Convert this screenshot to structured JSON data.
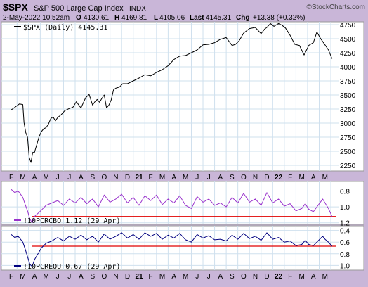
{
  "header": {
    "symbol": "$SPX",
    "name": "S&P 500 Large Cap Index",
    "exchange": "INDX",
    "copyright": "©StockCharts.com",
    "date_time": "2-May-2022 10:52am",
    "open_label": "O",
    "open_value": "4130.61",
    "high_label": "H",
    "high_value": "4169.81",
    "low_label": "L",
    "low_value": "4105.06",
    "last_label": "Last",
    "last_value": "4145.31",
    "chg_label": "Chg",
    "chg_value": "+13.38 (+0.32%)"
  },
  "months": [
    "F",
    "M",
    "A",
    "M",
    "J",
    "J",
    "A",
    "S",
    "O",
    "N",
    "D",
    "21",
    "F",
    "M",
    "A",
    "M",
    "J",
    "J",
    "A",
    "S",
    "O",
    "N",
    "D",
    "22",
    "F",
    "M",
    "A",
    "M"
  ],
  "bold_months": [
    "21",
    "22"
  ],
  "colors": {
    "background": "#c9b6d8",
    "panel": "#ffffff",
    "grid": "#cfe0ee",
    "price_line": "#000000",
    "cbo_line": "#9933cc",
    "equ_line": "#000080",
    "ref_line": "#e00000"
  },
  "chart_data": [
    {
      "type": "line",
      "legend": "$SPX (Daily) 4145.31",
      "x_unit": "month index (0 = Feb 2020)",
      "ylim": [
        2150,
        4800
      ],
      "yticks": [
        2250,
        2500,
        2750,
        3000,
        3250,
        3500,
        3750,
        4000,
        4250,
        4500,
        4750
      ],
      "series": [
        {
          "x": [
            0,
            0.3,
            0.7,
            1.0,
            1.1,
            1.25,
            1.4,
            1.55,
            1.7,
            1.85,
            2.0,
            2.2,
            2.4,
            2.6,
            2.8,
            3.0,
            3.2,
            3.4,
            3.6,
            3.8,
            4.0,
            4.3,
            4.6,
            5.0,
            5.3,
            5.6,
            6.0,
            6.4,
            6.7,
            7.0,
            7.2,
            7.4,
            7.6,
            7.8,
            8.0,
            8.2,
            8.4,
            8.6,
            8.8,
            9.0,
            9.3,
            9.6,
            10.0,
            10.5,
            11.0,
            11.5,
            12.0,
            12.5,
            13.0,
            13.5,
            14.0,
            14.5,
            15.0,
            15.5,
            16.0,
            16.5,
            17.0,
            17.5,
            18.0,
            18.5,
            19.0,
            19.3,
            19.6,
            20.0,
            20.5,
            21.0,
            21.5,
            21.8,
            22.0,
            22.3,
            22.6,
            23.0,
            23.3,
            23.6,
            24.0,
            24.4,
            24.8,
            25.2,
            25.6,
            26.0,
            26.3,
            26.6,
            27.0,
            27.3,
            27.6
          ],
          "values": [
            3235,
            3280,
            3340,
            3330,
            3010,
            2830,
            2750,
            2390,
            2300,
            2480,
            2480,
            2620,
            2760,
            2850,
            2900,
            2920,
            2980,
            3080,
            3110,
            3040,
            3100,
            3150,
            3220,
            3260,
            3280,
            3380,
            3270,
            3450,
            3510,
            3320,
            3380,
            3420,
            3370,
            3440,
            3500,
            3270,
            3320,
            3410,
            3590,
            3620,
            3640,
            3700,
            3700,
            3750,
            3800,
            3860,
            3840,
            3900,
            3950,
            4020,
            4130,
            4190,
            4200,
            4250,
            4300,
            4390,
            4400,
            4430,
            4490,
            4520,
            4380,
            4400,
            4460,
            4600,
            4680,
            4700,
            4590,
            4670,
            4700,
            4770,
            4720,
            4770,
            4740,
            4690,
            4560,
            4400,
            4380,
            4210,
            4380,
            4430,
            4620,
            4510,
            4390,
            4300,
            4145
          ]
        }
      ]
    },
    {
      "type": "line",
      "legend": "!10PCRCBO 1.12 (29 Apr)",
      "ylim": [
        1.22,
        0.68
      ],
      "yticks": [
        0.8,
        1.0,
        1.2
      ],
      "reference_line": 1.12,
      "series": [
        {
          "x": [
            0,
            0.3,
            0.6,
            1.0,
            1.2,
            1.4,
            1.6,
            1.8,
            2.0,
            2.3,
            2.6,
            3.0,
            3.5,
            4.0,
            4.5,
            5.0,
            5.5,
            6.0,
            6.5,
            7.0,
            7.5,
            8.0,
            8.5,
            9.0,
            9.5,
            10.0,
            10.5,
            11.0,
            11.5,
            12.0,
            12.5,
            13.0,
            13.5,
            14.0,
            14.5,
            15.0,
            15.5,
            16.0,
            16.5,
            17.0,
            17.5,
            18.0,
            18.5,
            19.0,
            19.5,
            20.0,
            20.5,
            21.0,
            21.5,
            22.0,
            22.5,
            23.0,
            23.5,
            24.0,
            24.5,
            25.0,
            25.3,
            25.6,
            26.0,
            26.4,
            26.8,
            27.0,
            27.3,
            27.6
          ],
          "values": [
            0.78,
            0.82,
            0.8,
            0.88,
            0.97,
            1.05,
            1.15,
            1.2,
            1.12,
            1.08,
            1.04,
            0.98,
            0.95,
            0.92,
            0.98,
            0.9,
            0.95,
            0.88,
            0.96,
            0.9,
            1.0,
            0.85,
            0.94,
            0.9,
            0.84,
            0.95,
            0.88,
            0.98,
            0.86,
            0.92,
            0.85,
            0.97,
            0.9,
            0.95,
            0.86,
            0.98,
            1.02,
            0.87,
            0.94,
            0.9,
            0.98,
            0.95,
            1.0,
            0.88,
            0.95,
            0.83,
            0.94,
            0.9,
            0.98,
            0.82,
            0.95,
            0.9,
            0.99,
            0.96,
            1.05,
            1.02,
            0.96,
            1.03,
            1.06,
            0.98,
            0.9,
            0.95,
            1.02,
            1.12
          ]
        }
      ]
    },
    {
      "type": "line",
      "legend": "!10PCREQU 0.67 (29 Apr)",
      "ylim": [
        1.08,
        0.32
      ],
      "yticks": [
        0.4,
        0.6,
        0.8,
        1.0
      ],
      "reference_line": 0.67,
      "series": [
        {
          "x": [
            0,
            0.3,
            0.6,
            1.0,
            1.2,
            1.4,
            1.6,
            1.8,
            2.0,
            2.3,
            2.6,
            3.0,
            3.5,
            4.0,
            4.5,
            5.0,
            5.5,
            6.0,
            6.5,
            7.0,
            7.5,
            8.0,
            8.5,
            9.0,
            9.5,
            10.0,
            10.5,
            11.0,
            11.5,
            12.0,
            12.5,
            13.0,
            13.5,
            14.0,
            14.5,
            15.0,
            15.5,
            16.0,
            16.5,
            17.0,
            17.5,
            18.0,
            18.5,
            19.0,
            19.5,
            20.0,
            20.5,
            21.0,
            21.5,
            22.0,
            22.5,
            23.0,
            23.5,
            24.0,
            24.5,
            25.0,
            25.3,
            25.6,
            26.0,
            26.4,
            26.8,
            27.0,
            27.3,
            27.6
          ],
          "values": [
            0.47,
            0.52,
            0.5,
            0.6,
            0.72,
            0.85,
            0.98,
            1.02,
            0.9,
            0.8,
            0.7,
            0.62,
            0.58,
            0.52,
            0.58,
            0.5,
            0.55,
            0.48,
            0.56,
            0.5,
            0.6,
            0.46,
            0.55,
            0.5,
            0.44,
            0.53,
            0.47,
            0.55,
            0.44,
            0.5,
            0.45,
            0.55,
            0.48,
            0.53,
            0.45,
            0.56,
            0.6,
            0.47,
            0.53,
            0.49,
            0.56,
            0.55,
            0.58,
            0.48,
            0.55,
            0.45,
            0.54,
            0.5,
            0.57,
            0.44,
            0.55,
            0.52,
            0.6,
            0.58,
            0.66,
            0.64,
            0.57,
            0.64,
            0.66,
            0.58,
            0.5,
            0.55,
            0.6,
            0.67
          ]
        }
      ]
    }
  ]
}
